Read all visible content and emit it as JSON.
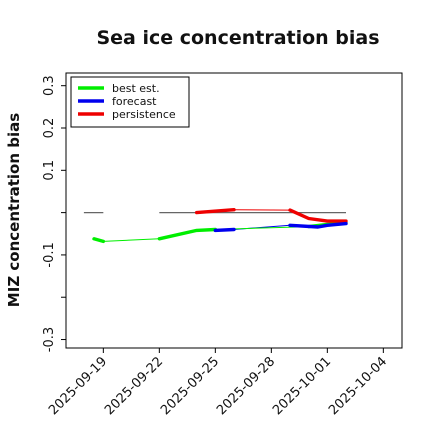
{
  "chart_data": {
    "type": "line",
    "title": "Sea ice concentration bias",
    "ylabel": "MIZ concentration bias",
    "xlabel": "",
    "ylim": [
      -0.32,
      0.33
    ],
    "xlim": [
      "2025-09-17",
      "2025-10-05"
    ],
    "y_ticks": [
      {
        "value": 0.3,
        "label": "0.3"
      },
      {
        "value": 0.2,
        "label": "0.2"
      },
      {
        "value": 0.1,
        "label": "0.1"
      },
      {
        "value": 0.0,
        "label": ""
      },
      {
        "value": -0.1,
        "label": "-0.1"
      },
      {
        "value": -0.2,
        "label": ""
      },
      {
        "value": -0.3,
        "label": "-0.3"
      }
    ],
    "x_ticks": [
      {
        "date": "2025-09-19",
        "label": "2025-09-19",
        "color": "#111111"
      },
      {
        "date": "2025-09-22",
        "label": "2025-09-22",
        "color": "#111111"
      },
      {
        "date": "2025-09-25",
        "label": "2025-09-25",
        "color": "#228b22"
      },
      {
        "date": "2025-09-28",
        "label": "2025-09-28",
        "color": "#111111"
      },
      {
        "date": "2025-10-01",
        "label": "2025-10-01",
        "color": "#111111"
      },
      {
        "date": "2025-10-04",
        "label": "2025-10-04",
        "color": "#111111"
      }
    ],
    "legend": {
      "placement": "top-left"
    },
    "grid": false,
    "series": [
      {
        "name": "best est.",
        "color": "#00ee00",
        "x": [
          "2025-09-18T12:00",
          "2025-09-19T00:00",
          "2025-09-22T00:00",
          "2025-09-24T00:00",
          "2025-09-25T00:00",
          "2025-09-30T00:00",
          "2025-10-01T00:00",
          "2025-10-02T00:00"
        ],
        "y": [
          -0.062,
          -0.068,
          -0.062,
          -0.042,
          -0.04,
          -0.033,
          -0.028,
          -0.024
        ]
      },
      {
        "name": "forecast",
        "color": "#0000ee",
        "x": [
          "2025-09-25T00:00",
          "2025-09-26T00:00",
          "2025-09-29T00:00",
          "2025-09-30T12:00",
          "2025-10-01T00:00",
          "2025-10-02T00:00"
        ],
        "y": [
          -0.042,
          -0.04,
          -0.03,
          -0.034,
          -0.03,
          -0.026
        ]
      },
      {
        "name": "persistence",
        "color": "#ee0000",
        "x": [
          "2025-09-24T00:00",
          "2025-09-26T00:00",
          "2025-09-29T00:00",
          "2025-09-30T00:00",
          "2025-10-01T00:00",
          "2025-10-02T00:00"
        ],
        "y": [
          0.0,
          0.007,
          0.006,
          -0.014,
          -0.02,
          -0.02
        ]
      }
    ],
    "reference_line": {
      "color": "#666666",
      "value": 0.0,
      "segments": [
        [
          "2025-09-17T23:00",
          "2025-09-19T00:00"
        ],
        [
          "2025-09-22T00:00",
          "2025-10-02T00:00"
        ]
      ]
    },
    "thin_segments": [
      {
        "color": "#00ee00",
        "x": [
          "2025-09-19T00:00",
          "2025-09-22T00:00"
        ],
        "y": [
          -0.068,
          -0.062
        ]
      },
      {
        "color": "#0000ee",
        "x": [
          "2025-09-26T00:00",
          "2025-09-29T00:00"
        ],
        "y": [
          -0.04,
          -0.03
        ]
      },
      {
        "color": "#00ee00",
        "x": [
          "2025-09-25T00:00",
          "2025-09-30T00:00"
        ],
        "y": [
          -0.04,
          -0.033
        ]
      },
      {
        "color": "#ee0000",
        "x": [
          "2025-09-26T00:00",
          "2025-09-29T00:00"
        ],
        "y": [
          0.007,
          0.006
        ]
      }
    ]
  }
}
